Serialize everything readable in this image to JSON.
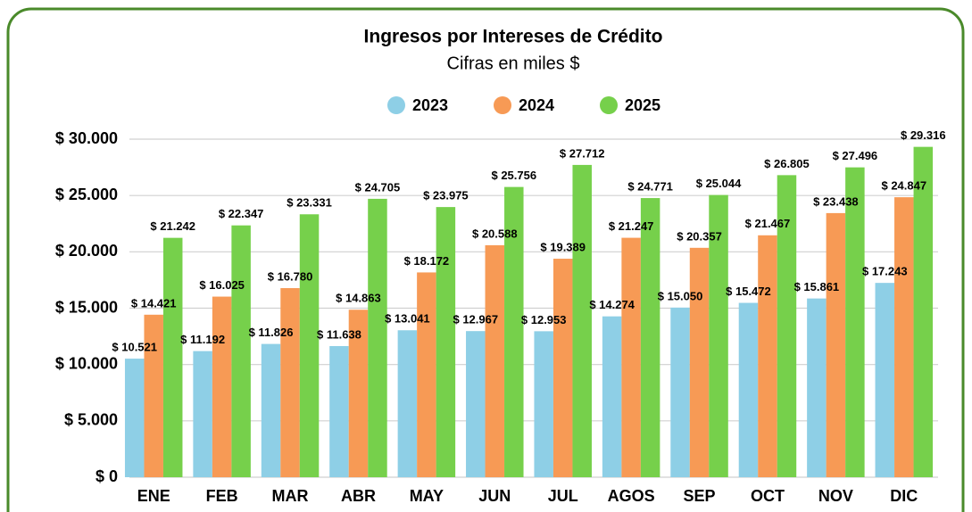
{
  "chart_data": {
    "type": "bar",
    "title": "Ingresos por Intereses de Crédito",
    "subtitle": "Cifras en miles $",
    "categories": [
      "ENE",
      "FEB",
      "MAR",
      "ABR",
      "MAY",
      "JUN",
      "JUL",
      "AGOS",
      "SEP",
      "OCT",
      "NOV",
      "DIC"
    ],
    "series": [
      {
        "name": "2023",
        "color": "#8ecfe6",
        "values": [
          10521,
          11192,
          11826,
          11638,
          13041,
          12967,
          12953,
          14274,
          15050,
          15472,
          15861,
          17243
        ],
        "value_labels": [
          "$ 10.521",
          "$ 11.192",
          "$ 11.826",
          "$ 11.638",
          "$ 13.041",
          "$ 12.967",
          "$ 12.953",
          "$ 14.274",
          "$ 15.050",
          "$ 15.472",
          "$ 15.861",
          "$ 17.243"
        ]
      },
      {
        "name": "2024",
        "color": "#f79a55",
        "values": [
          14421,
          16025,
          16780,
          14863,
          18172,
          20588,
          19389,
          21247,
          20357,
          21467,
          23438,
          24847
        ],
        "value_labels": [
          "$ 14.421",
          "$ 16.025",
          "$ 16.780",
          "$ 14.863",
          "$ 18.172",
          "$ 20.588",
          "$ 19.389",
          "$ 21.247",
          "$ 20.357",
          "$ 21.467",
          "$ 23.438",
          "$ 24.847"
        ]
      },
      {
        "name": "2025",
        "color": "#76d04b",
        "values": [
          21242,
          22347,
          23331,
          24705,
          23975,
          25756,
          27712,
          24771,
          25044,
          26805,
          27496,
          29316
        ],
        "value_labels": [
          "$ 21.242",
          "$ 22.347",
          "$ 23.331",
          "$ 24.705",
          "$ 23.975",
          "$ 25.756",
          "$ 27.712",
          "$ 24.771",
          "$ 25.044",
          "$ 26.805",
          "$ 27.496",
          "$ 29.316"
        ]
      }
    ],
    "ylim": [
      0,
      30000
    ],
    "yticks": [
      {
        "value": 0,
        "label": "$ 0"
      },
      {
        "value": 5000,
        "label": "$ 5.000"
      },
      {
        "value": 10000,
        "label": "$ 10.000"
      },
      {
        "value": 15000,
        "label": "$ 15.000"
      },
      {
        "value": 20000,
        "label": "$ 20.000"
      },
      {
        "value": 25000,
        "label": "$ 25.000"
      },
      {
        "value": 30000,
        "label": "$ 30.000"
      }
    ],
    "grid": true,
    "legend": "top"
  }
}
